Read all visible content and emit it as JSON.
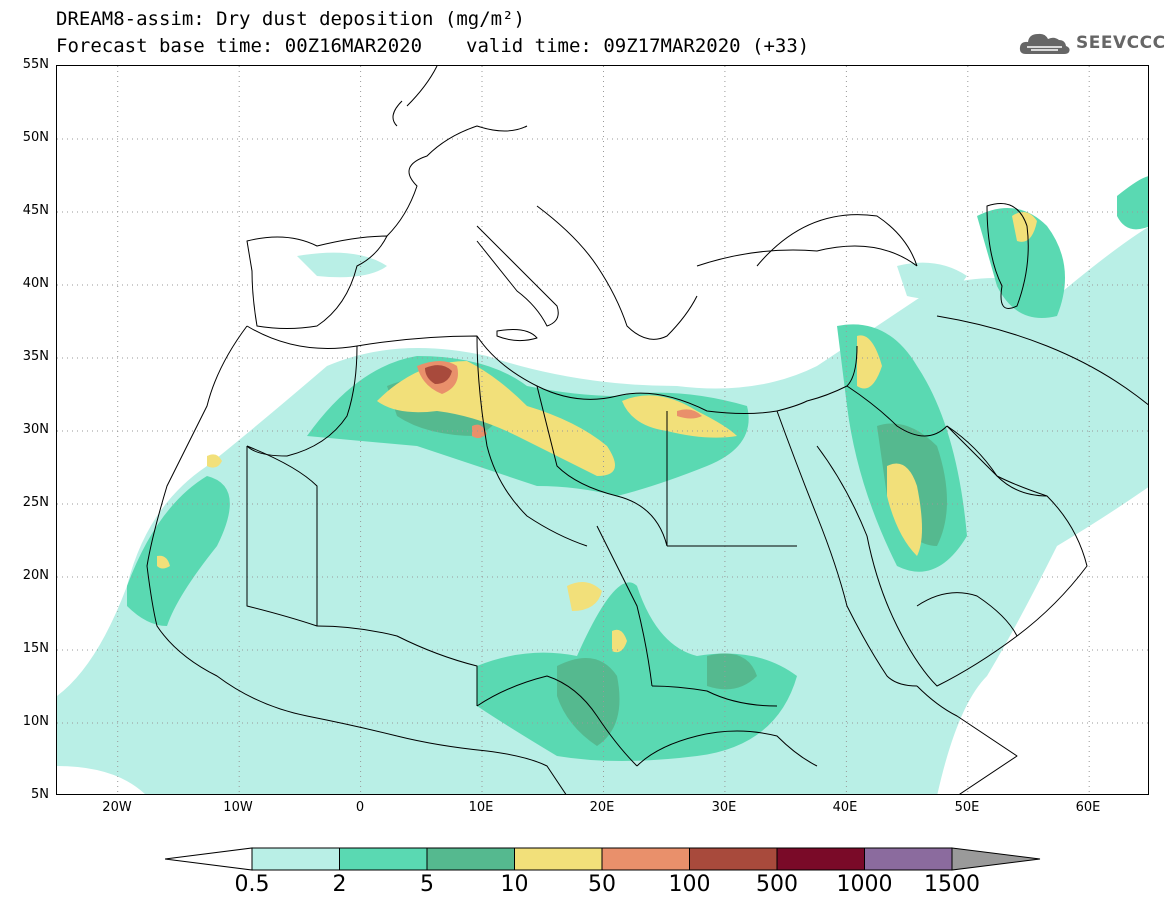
{
  "title": {
    "line1": "DREAM8-assim: Dry dust deposition (mg/m²)",
    "base_time": "Forecast base time: 00Z16MAR2020",
    "valid_time": "valid time: 09Z17MAR2020 (+33)"
  },
  "logo": {
    "text": "SEEVCCC",
    "icon": "cloud-icon"
  },
  "map": {
    "lat_labels": [
      "55N",
      "50N",
      "45N",
      "40N",
      "35N",
      "30N",
      "25N",
      "20N",
      "15N",
      "10N",
      "5N"
    ],
    "lon_labels": [
      "20W",
      "10W",
      "0",
      "10E",
      "20E",
      "30E",
      "40E",
      "50E",
      "60E"
    ],
    "lon_range": [
      -25,
      65
    ],
    "lat_range": [
      5,
      55
    ]
  },
  "colorbar": {
    "labels": [
      "0.5",
      "2",
      "5",
      "10",
      "50",
      "100",
      "500",
      "1000",
      "1500"
    ],
    "colors": [
      "#b9efe6",
      "#5ad9b2",
      "#55b98f",
      "#f2e07a",
      "#e9906b",
      "#a84a3c",
      "#7a0a28",
      "#8b6b9e"
    ],
    "under_color": "#ffffff",
    "over_color": "#9a9a9a"
  }
}
